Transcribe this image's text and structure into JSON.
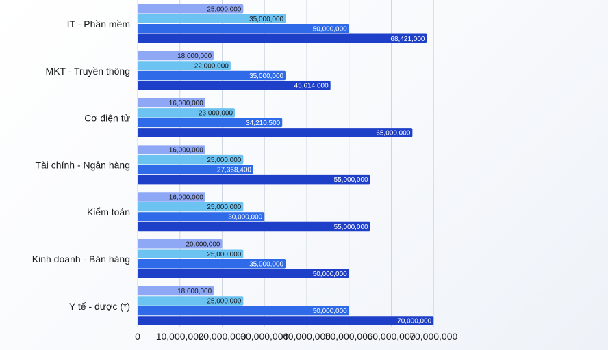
{
  "chart_data": {
    "type": "bar",
    "orientation": "horizontal",
    "categories": [
      "IT - Phần mềm",
      "MKT - Truyền thông",
      "Cơ điện tử",
      "Tài chính - Ngân hàng",
      "Kiểm toán",
      "Kinh doanh - Bán hàng",
      "Y tế - dược (*)"
    ],
    "series": [
      {
        "name": "series-1",
        "color": "#8fa8f5",
        "label_color": "#1a1a1a",
        "values": [
          25000000,
          18000000,
          16000000,
          16000000,
          16000000,
          20000000,
          18000000
        ],
        "labels": [
          "25,000,000",
          "18,000,000",
          "16,000,000",
          "16,000,000",
          "16,000,000",
          "20,000,000",
          "18,000,000"
        ]
      },
      {
        "name": "series-2",
        "color": "#6cc3f2",
        "label_color": "#1a1a1a",
        "values": [
          35000000,
          22000000,
          23000000,
          25000000,
          25000000,
          25000000,
          25000000
        ],
        "labels": [
          "35,000,000",
          "22,000,000",
          "23,000,000",
          "25,000,000",
          "25,000,000",
          "25,000,000",
          "25,000,000"
        ]
      },
      {
        "name": "series-3",
        "color": "#2f6be8",
        "label_color": "#ffffff",
        "values": [
          50000000,
          35000000,
          34210500,
          27368400,
          30000000,
          35000000,
          50000000
        ],
        "labels": [
          "50,000,000",
          "35,000,000",
          "34,210,500",
          "27,368,400",
          "30,000,000",
          "35,000,000",
          "50,000,000"
        ]
      },
      {
        "name": "series-4",
        "color": "#1e3fc8",
        "label_color": "#ffffff",
        "values": [
          68421000,
          45614000,
          65000000,
          55000000,
          55000000,
          50000000,
          70000000
        ],
        "labels": [
          "68,421,000",
          "45,614,000",
          "65,000,000",
          "55,000,000",
          "55,000,000",
          "50,000,000",
          "70,000,000"
        ]
      }
    ],
    "x_ticks": [
      0,
      10000000,
      20000000,
      30000000,
      40000000,
      50000000,
      60000000,
      70000000
    ],
    "x_tick_labels": [
      "0",
      "10,000,000",
      "20,000,000",
      "30,000,000",
      "40,000,000",
      "50,000,000",
      "60,000,000",
      "70,000,000"
    ],
    "xlim": [
      0,
      70000000
    ],
    "title": "",
    "xlabel": "",
    "ylabel": "",
    "grid": true,
    "legend": "none"
  }
}
